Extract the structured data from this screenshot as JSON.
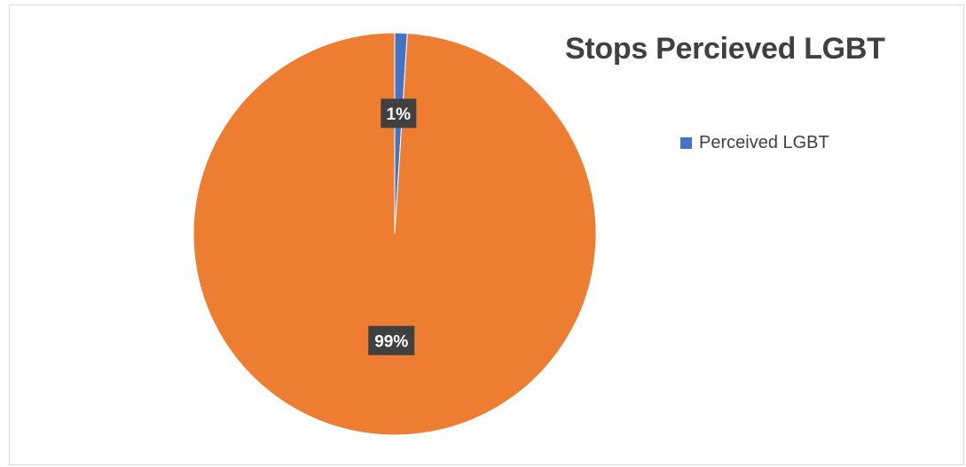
{
  "chart_data": {
    "type": "pie",
    "title": "Stops Percieved LGBT",
    "categories": [
      "Perceived LGBT",
      ""
    ],
    "values": [
      1,
      99
    ],
    "data_labels": [
      "1%",
      "99%"
    ],
    "colors": [
      "#4472c4",
      "#ed7d31"
    ],
    "legend": {
      "placement": "right",
      "entries": [
        {
          "label": "Perceived LGBT",
          "color": "#4472c4"
        }
      ]
    },
    "grid": false
  }
}
